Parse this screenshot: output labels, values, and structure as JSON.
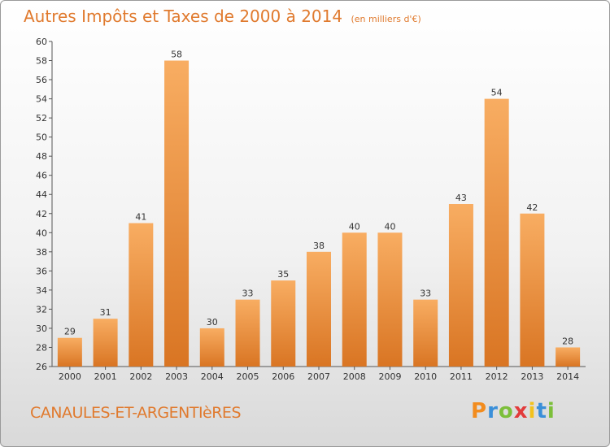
{
  "title": "Autres Impôts et Taxes de 2000 à 2014",
  "subtitle": "(en milliers d'€)",
  "location": "CANAULES-ET-ARGENTIèRES",
  "logo": {
    "text": "Proxiti",
    "colors": [
      "#f28c1e",
      "#3a8fd9",
      "#7cbf3a",
      "#e23b3b",
      "#f2c21e",
      "#3a8fd9",
      "#7cbf3a"
    ]
  },
  "colors": {
    "bar_light": "#f6a65a",
    "bar_dark": "#d9782a",
    "accent": "#e07a2e"
  },
  "chart_data": {
    "type": "bar",
    "title": "Autres Impôts et Taxes de 2000 à 2014",
    "categories": [
      "2000",
      "2001",
      "2002",
      "2003",
      "2004",
      "2005",
      "2006",
      "2007",
      "2008",
      "2009",
      "2010",
      "2011",
      "2012",
      "2013",
      "2014"
    ],
    "values": [
      29,
      31,
      41,
      58,
      30,
      33,
      35,
      38,
      40,
      40,
      33,
      43,
      54,
      42,
      28
    ],
    "ylim": [
      26,
      60
    ],
    "yticks": [
      26,
      28,
      30,
      32,
      34,
      36,
      38,
      40,
      42,
      44,
      46,
      48,
      50,
      52,
      54,
      56,
      58,
      60
    ],
    "grid": false,
    "data_labels": true
  }
}
